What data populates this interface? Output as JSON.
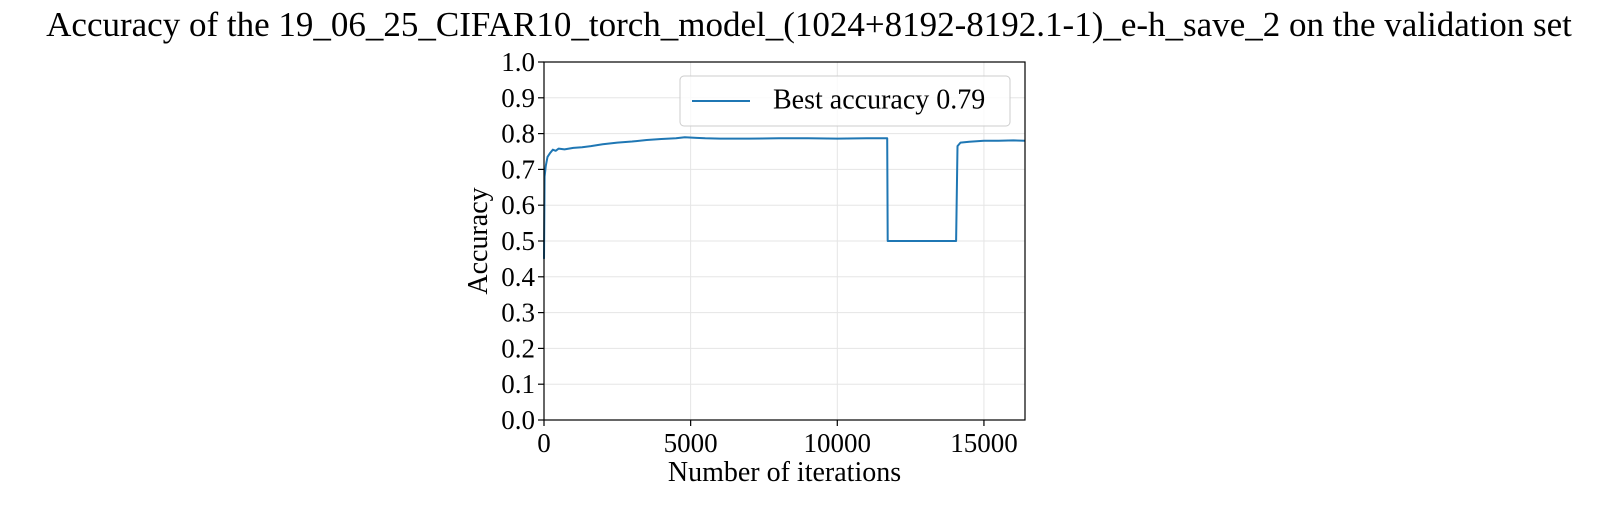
{
  "chart_data": {
    "type": "line",
    "title": "Accuracy of the 19_06_25_CIFAR10_torch_model_(1024+8192-8192.1-1)_e-h_save_2 on the validation set",
    "xlabel": "Number of iterations",
    "ylabel": "Accuracy",
    "xlim": [
      0,
      16400
    ],
    "ylim": [
      0.0,
      1.0
    ],
    "xticks": [
      0,
      5000,
      10000,
      15000
    ],
    "yticks": [
      0.0,
      0.1,
      0.2,
      0.3,
      0.4,
      0.5,
      0.6,
      0.7,
      0.8,
      0.9,
      1.0
    ],
    "grid": true,
    "legend_position": "top-right",
    "series": [
      {
        "name": "Best accuracy 0.79",
        "color": "#1f77b4",
        "x": [
          0,
          20,
          60,
          120,
          200,
          300,
          400,
          500,
          700,
          1000,
          1300,
          1600,
          2000,
          2500,
          3000,
          3500,
          4000,
          4500,
          4800,
          5200,
          5500,
          6000,
          7000,
          8000,
          9000,
          10000,
          11000,
          11700,
          11720,
          12500,
          13500,
          14050,
          14100,
          14200,
          14500,
          15000,
          15500,
          16000,
          16400
        ],
        "y": [
          0.45,
          0.68,
          0.71,
          0.735,
          0.745,
          0.755,
          0.752,
          0.758,
          0.756,
          0.76,
          0.762,
          0.765,
          0.77,
          0.775,
          0.778,
          0.782,
          0.785,
          0.787,
          0.79,
          0.788,
          0.787,
          0.786,
          0.786,
          0.787,
          0.787,
          0.786,
          0.787,
          0.787,
          0.5,
          0.5,
          0.5,
          0.5,
          0.765,
          0.775,
          0.777,
          0.78,
          0.78,
          0.781,
          0.78
        ]
      }
    ]
  }
}
